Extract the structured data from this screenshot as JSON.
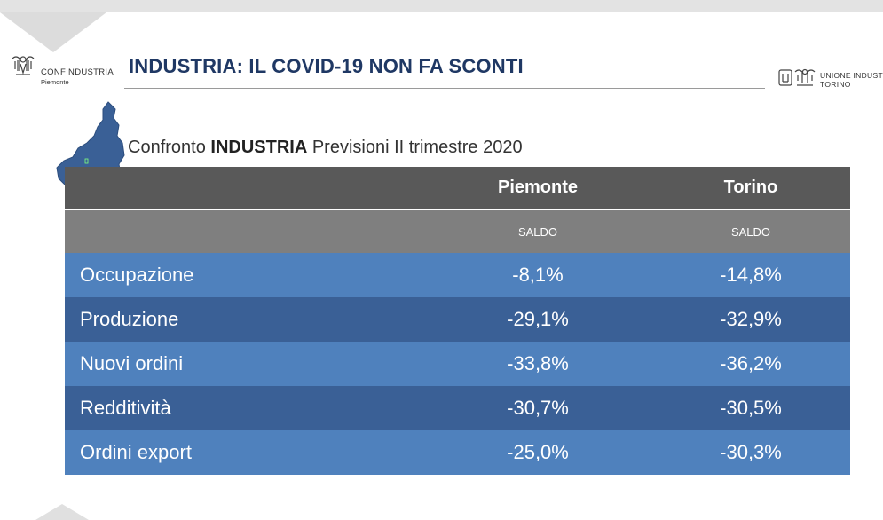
{
  "header": {
    "title": "INDUSTRIA: IL COVID-19 NON FA SCONTI",
    "logo_left": {
      "brand": "CONFINDUSTRIA",
      "sub": "Piemonte"
    },
    "logo_right": {
      "brand": "UNIONE INDUSTRIALE",
      "sub": "TORINO"
    }
  },
  "subtitle": {
    "prefix": "Confronto ",
    "bold": "INDUSTRIA",
    "suffix": " Previsioni II trimestre 2020"
  },
  "table": {
    "columns": [
      "",
      "Piemonte",
      "Torino"
    ],
    "subheader": [
      "",
      "SALDO",
      "SALDO"
    ],
    "rows": [
      {
        "label": "Occupazione",
        "piemonte": "-8,1%",
        "torino": "-14,8%"
      },
      {
        "label": "Produzione",
        "piemonte": "-29,1%",
        "torino": "-32,9%"
      },
      {
        "label": "Nuovi ordini",
        "piemonte": "-33,8%",
        "torino": "-36,2%"
      },
      {
        "label": "Redditività",
        "piemonte": "-30,7%",
        "torino": "-30,5%"
      },
      {
        "label": "Ordini export",
        "piemonte": "-25,0%",
        "torino": "-30,3%"
      }
    ]
  },
  "colors": {
    "title": "#1f3864",
    "header_dark": "#595959",
    "header_gray": "#7f7f7f",
    "row_light": "#4f81bd",
    "row_dark": "#3a6096",
    "map": "#3a6096"
  },
  "icons": {
    "logo_left": "confindustria-eagle-icon",
    "logo_right": "unione-industriale-icon",
    "map": "piemonte-region-map"
  }
}
